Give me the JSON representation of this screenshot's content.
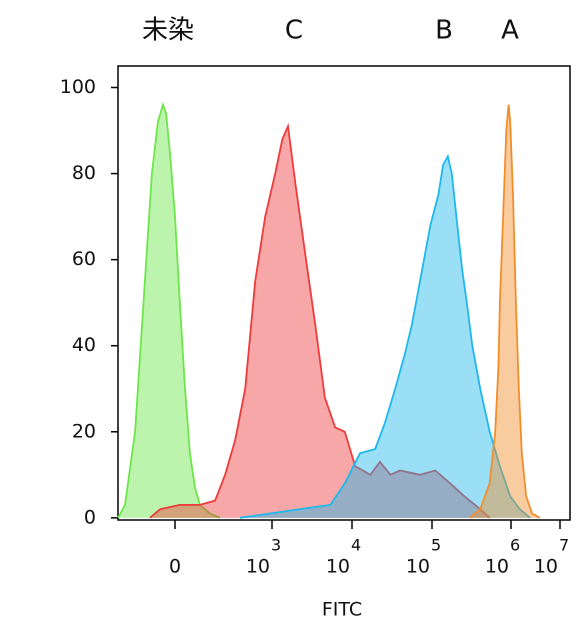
{
  "chart_data": {
    "type": "area",
    "annotations": [
      "未染",
      "C",
      "B",
      "A"
    ],
    "xlabel": "FITC",
    "xlim": [
      -1.8,
      7.2
    ],
    "xticks": [
      0,
      {
        "value": 3,
        "label": "10",
        "exponent": "3"
      },
      {
        "value": 4,
        "label": "10",
        "exponent": "4"
      },
      {
        "value": 5,
        "label": "10",
        "exponent": "5"
      },
      {
        "value": 6,
        "label": "10",
        "exponent": "6"
      },
      {
        "value": 7,
        "label": "10",
        "exponent": "7"
      }
    ],
    "ylim": [
      -0.5,
      105
    ],
    "yticks": [
      0,
      20,
      40,
      60,
      80,
      100
    ],
    "series": [
      {
        "name": "未染",
        "color": "#6ce64a",
        "x": [
          -1.8,
          -1.58,
          -1.26,
          -0.95,
          -0.73,
          -0.54,
          -0.38,
          -0.28,
          -0.16,
          0,
          0.15,
          0.31,
          0.46,
          0.62,
          0.77,
          1.08,
          1.39
        ],
        "values": [
          0,
          3,
          20,
          55,
          80,
          92,
          96,
          94,
          85,
          70,
          50,
          30,
          15,
          7,
          3,
          1,
          0
        ]
      },
      {
        "name": "C",
        "color": "#ee3b3b",
        "x": [
          -0.79,
          -0.47,
          0.15,
          0.77,
          1.24,
          1.55,
          1.86,
          2.17,
          2.48,
          2.79,
          3.04,
          3.13,
          3.2,
          3.29,
          3.41,
          3.54,
          3.66,
          3.79,
          3.91,
          4.04,
          4.23,
          4.35,
          4.48,
          4.6,
          4.85,
          5.04,
          5.23,
          5.41,
          5.61,
          5.73
        ],
        "values": [
          0,
          2,
          3,
          3,
          4,
          10,
          18,
          30,
          55,
          70,
          80,
          88,
          91,
          78,
          62,
          45,
          28,
          21,
          20,
          12,
          10,
          13,
          10,
          11,
          10,
          11,
          8,
          5,
          2,
          0
        ]
      },
      {
        "name": "B",
        "color": "#1fb8ec",
        "x": [
          2.01,
          2.94,
          3.35,
          3.73,
          3.91,
          4.1,
          4.29,
          4.41,
          4.54,
          4.66,
          4.75,
          4.85,
          4.98,
          5.08,
          5.14,
          5.2,
          5.25,
          5.32,
          5.38,
          5.44,
          5.51,
          5.61,
          5.73,
          5.86,
          5.99,
          6.18,
          6.39
        ],
        "values": [
          0,
          1,
          2,
          3,
          8,
          15,
          16,
          22,
          30,
          38,
          45,
          55,
          68,
          75,
          82,
          84,
          80,
          68,
          58,
          50,
          40,
          30,
          20,
          12,
          5,
          2,
          0
        ]
      },
      {
        "name": "A",
        "color": "#f28d2c",
        "x": [
          5.48,
          5.61,
          5.73,
          5.8,
          5.84,
          5.86,
          5.9,
          5.94,
          5.97,
          5.99,
          6.04,
          6.1,
          6.16,
          6.22,
          6.31,
          6.43,
          6.59
        ],
        "values": [
          0,
          2,
          8,
          20,
          35,
          50,
          70,
          90,
          96,
          92,
          75,
          50,
          30,
          15,
          5,
          1,
          0
        ]
      }
    ]
  }
}
